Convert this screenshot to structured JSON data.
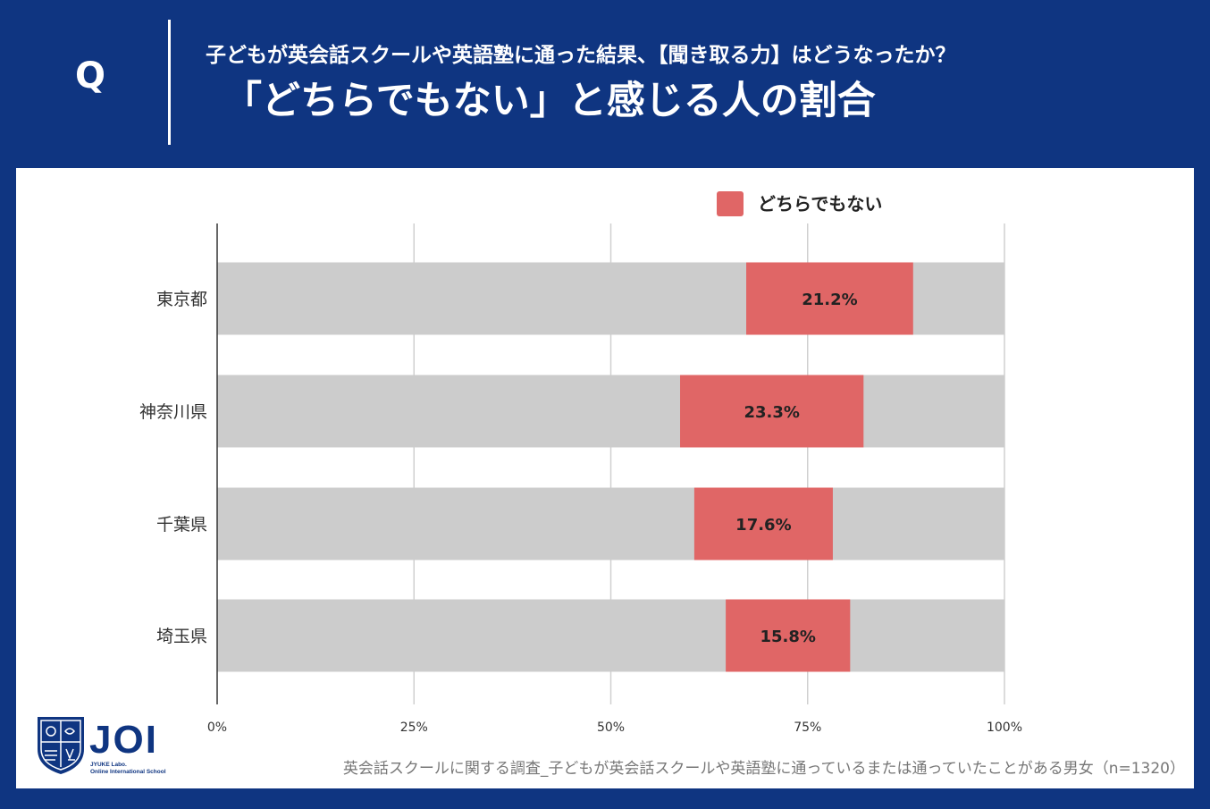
{
  "header": {
    "q_label": "Q",
    "question": "子どもが英会話スクールや英語塾に通った結果、【聞き取る力】はどうなったか？",
    "headline": "「どちらでもない」と感じる人の割合"
  },
  "colors": {
    "background": "#0f3581",
    "highlight": "#e06666",
    "track": "#cccccc"
  },
  "chart_data": {
    "type": "bar",
    "orientation": "horizontal-stacked",
    "legend": [
      {
        "name": "どちらでもない",
        "color": "#e06666"
      }
    ],
    "legend_position": "top",
    "categories": [
      "東京都",
      "神奈川県",
      "千葉県",
      "埼玉県"
    ],
    "series": [
      {
        "name": "どちらでもない",
        "start": [
          67.2,
          58.8,
          60.6,
          64.6
        ],
        "values": [
          21.2,
          23.3,
          17.6,
          15.8
        ],
        "labels": [
          "21.2%",
          "23.3%",
          "17.6%",
          "15.8%"
        ]
      }
    ],
    "x_ticks": [
      "0%",
      "25%",
      "50%",
      "75%",
      "100%"
    ],
    "xlim": [
      0,
      100
    ],
    "grid": true
  },
  "logo": {
    "name": "JOI",
    "sub1": "JYUKE Labo.",
    "sub2": "Online International School"
  },
  "source": "英会話スクールに関する調査_子どもが英会話スクールや英語塾に通っているまたは通っていたことがある男女（n=1320）"
}
